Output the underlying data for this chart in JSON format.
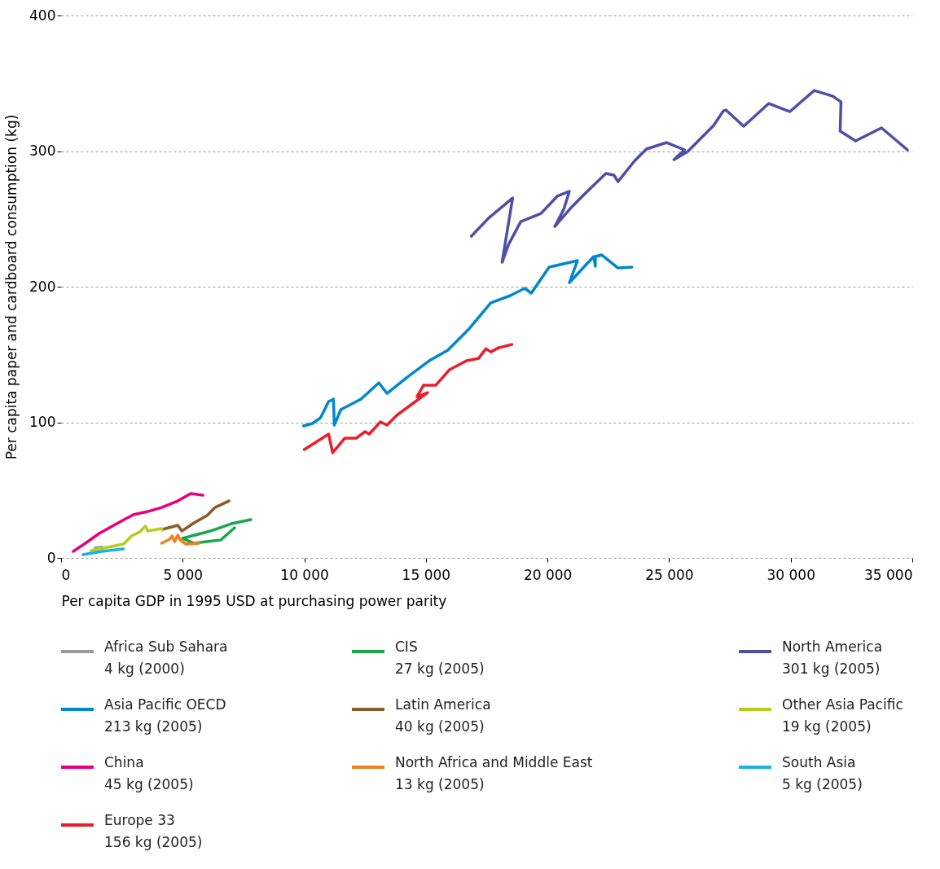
{
  "chart_data": {
    "type": "line",
    "xlabel": "Per capita GDP in 1995 USD at purchasing power parity",
    "ylabel": "Per capita paper and cardboard consumption (kg)",
    "xlim": [
      0,
      35000
    ],
    "ylim": [
      0,
      400
    ],
    "xticks": [
      0,
      {
        "value": 5000,
        "label": "5 000"
      },
      {
        "value": 10000,
        "label": "10 000"
      },
      {
        "value": 15000,
        "label": "15 000"
      },
      {
        "value": 20000,
        "label": "20 000"
      },
      {
        "value": 25000,
        "label": "25 000"
      },
      {
        "value": 30000,
        "label": "30 000"
      },
      {
        "value": 35000,
        "label": "35 000"
      }
    ],
    "yticks": [
      0,
      100,
      200,
      300,
      400
    ],
    "grid": "y",
    "legend": "bottom",
    "line_style": "solid",
    "marker": "none",
    "series": [
      {
        "name": "Africa Sub Sahara\n4 kg (2000)",
        "color": "#999999",
        "x": [
          1400,
          1700
        ],
        "values": [
          7.5,
          7.8
        ]
      },
      {
        "name": "Asia Pacific OECD\n213 kg (2005)",
        "color": "#0088cc",
        "x": [
          9967,
          10333,
          10667,
          11000,
          11200,
          11233,
          11500,
          12333,
          13067,
          13400,
          14233,
          15133,
          15900,
          16800,
          17667,
          18467,
          19067,
          19333,
          20067,
          21233,
          20900,
          21900,
          21967,
          21967,
          22233,
          22900,
          23467
        ],
        "values": [
          97.3,
          99.1,
          103.3,
          115.3,
          117.1,
          97.9,
          109.3,
          117.1,
          129.1,
          121.3,
          133.3,
          145.3,
          153.2,
          169.4,
          188.0,
          193.4,
          198.8,
          195.2,
          214.4,
          219.2,
          203.0,
          222.2,
          215.0,
          222.2,
          223.4,
          213.8,
          214.4
        ]
      },
      {
        "name": "China\n45 kg (2005)",
        "color": "#e6007e",
        "x": [
          500,
          1000,
          1567,
          2467,
          2967,
          3567,
          4133,
          4800,
          5333,
          5833
        ],
        "values": [
          4.8,
          10.8,
          18.0,
          27.0,
          31.8,
          34.2,
          37.2,
          42.0,
          47.4,
          46.2
        ]
      },
      {
        "name": "Europe 33\n156 kg (2005)",
        "color": "#e8202a",
        "x": [
          10000,
          11000,
          11167,
          11667,
          12133,
          12500,
          12667,
          13133,
          13400,
          13800,
          15067,
          14633,
          14900,
          15400,
          15967,
          16667,
          17167,
          17467,
          17667,
          18000,
          18533
        ],
        "values": [
          79.9,
          91.3,
          77.5,
          88.3,
          88.3,
          93.1,
          91.3,
          100.3,
          97.9,
          105.1,
          121.9,
          118.9,
          127.3,
          127.3,
          138.7,
          145.3,
          147.1,
          154.3,
          151.9,
          155.0,
          157.4
        ]
      },
      {
        "name": "CIS\n27 kg (2005)",
        "color": "#1aa64a",
        "x": [
          7133,
          6567,
          5467,
          5000,
          6133,
          7000,
          7800
        ],
        "values": [
          22.2,
          13.2,
          10.8,
          14.4,
          19.8,
          25.2,
          28.2
        ]
      },
      {
        "name": "Latin America\n40 kg (2005)",
        "color": "#8b5a2b",
        "x": [
          4167,
          4800,
          4967,
          5467,
          6000,
          6333,
          6900
        ],
        "values": [
          21.0,
          24.0,
          19.8,
          25.8,
          31.2,
          37.2,
          42.0
        ]
      },
      {
        "name": "North Africa and Middle East\n13 kg (2005)",
        "color": "#f08020",
        "x": [
          4133,
          4467,
          4567,
          4667,
          4800,
          4900,
          5133,
          5667
        ],
        "values": [
          10.8,
          13.8,
          16.2,
          12.0,
          16.8,
          13.2,
          10.2,
          10.8
        ]
      },
      {
        "name": "North America\n301 kg (2005)",
        "color": "#4f4fa8",
        "x": [
          16870,
          17567,
          18567,
          18133,
          18400,
          18900,
          19400,
          19733,
          20400,
          20900,
          20667,
          20300,
          21000,
          21567,
          22400,
          22733,
          22900,
          23567,
          24067,
          24900,
          25633,
          25200,
          25767,
          26233,
          26833,
          27233,
          27333,
          28067,
          29100,
          29967,
          30967,
          31733,
          32067,
          32033,
          32667,
          33733,
          34800
        ],
        "values": [
          237.2,
          250.4,
          265.4,
          218.0,
          231.2,
          248.0,
          251.6,
          254.0,
          266.7,
          270.3,
          257.0,
          244.4,
          258.9,
          269.1,
          283.5,
          282.3,
          277.5,
          292.5,
          301.5,
          306.3,
          300.9,
          293.7,
          299.7,
          308.1,
          318.9,
          329.7,
          330.3,
          318.3,
          335.1,
          329.1,
          344.7,
          340.5,
          336.3,
          314.7,
          307.5,
          317.1,
          300.9
        ]
      },
      {
        "name": "Other Asia Pacific\n19 kg (2005)",
        "color": "#b5cc18",
        "x": [
          1233,
          2567,
          2900,
          3233,
          3467,
          3567,
          4133,
          4167
        ],
        "values": [
          5.4,
          10.2,
          16.2,
          19.2,
          23.4,
          19.8,
          21.6,
          20.4
        ]
      },
      {
        "name": "South Asia\n5 kg (2005)",
        "color": "#1ab0e8",
        "x": [
          900,
          1667,
          2567
        ],
        "values": [
          2.4,
          4.8,
          6.6
        ]
      }
    ]
  }
}
